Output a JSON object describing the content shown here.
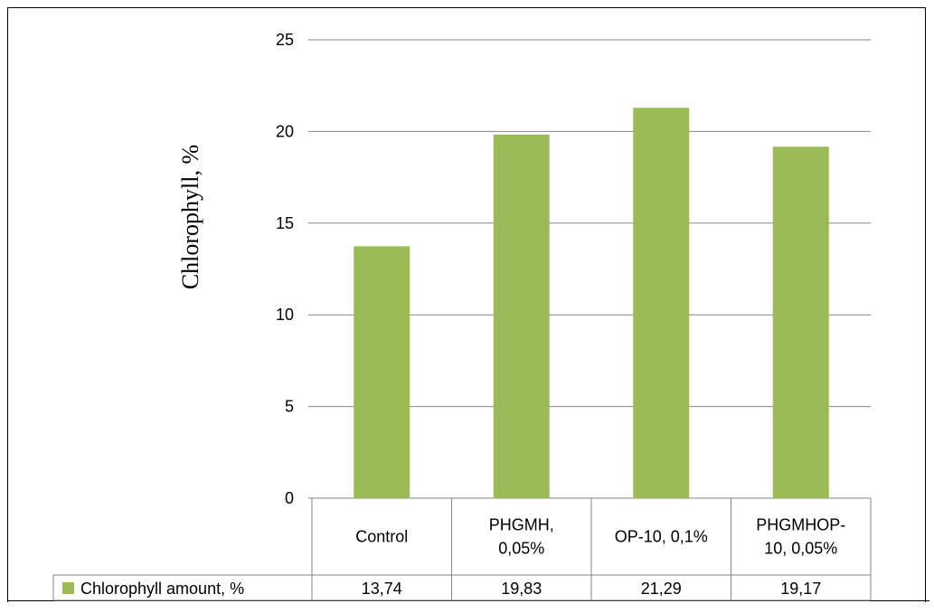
{
  "chart_data": {
    "type": "bar",
    "title": "",
    "xlabel": "",
    "ylabel": "Chlorophyll, %",
    "categories": [
      [
        "Control"
      ],
      [
        "PHGMH,",
        "0,05%"
      ],
      [
        "OP-10, 0,1%"
      ],
      [
        "PHGMHOP-",
        "10, 0,05%"
      ]
    ],
    "series": [
      {
        "name": "Chlorophyll amount, %",
        "values": [
          13.74,
          19.83,
          21.29,
          19.17
        ],
        "value_labels": [
          "13,74",
          "19,83",
          "21,29",
          "19,17"
        ],
        "color": "#9BBB59"
      }
    ],
    "ylim": [
      0,
      25
    ],
    "yticks": [
      0,
      5,
      10,
      15,
      20,
      25
    ],
    "grid": true,
    "legend": "data-table-left"
  }
}
